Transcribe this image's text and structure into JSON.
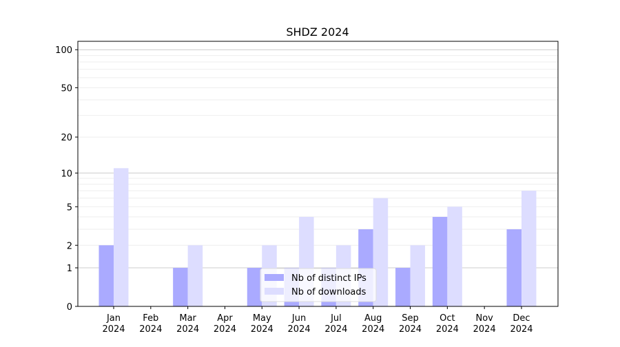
{
  "chart_data": {
    "type": "bar",
    "title": "SHDZ 2024",
    "xlabel": "",
    "ylabel": "",
    "yscale": "log(1+y)",
    "ylim": [
      0,
      116
    ],
    "yticks": [
      0,
      1,
      2,
      5,
      10,
      20,
      50,
      100
    ],
    "grid": true,
    "legend_placement": "bottom-center",
    "categories": [
      "Jan\n2024",
      "Feb\n2024",
      "Mar\n2024",
      "Apr\n2024",
      "May\n2024",
      "Jun\n2024",
      "Jul\n2024",
      "Aug\n2024",
      "Sep\n2024",
      "Oct\n2024",
      "Nov\n2024",
      "Dec\n2024"
    ],
    "series": [
      {
        "name": "Nb of distinct IPs",
        "color": "#aaaaff",
        "values": [
          2,
          0,
          1,
          0,
          1,
          1,
          1,
          3,
          1,
          4,
          0,
          3
        ]
      },
      {
        "name": "Nb of downloads",
        "color": "#ddddff",
        "values": [
          11,
          0,
          2,
          0,
          2,
          4,
          2,
          6,
          2,
          5,
          0,
          7
        ]
      }
    ]
  }
}
